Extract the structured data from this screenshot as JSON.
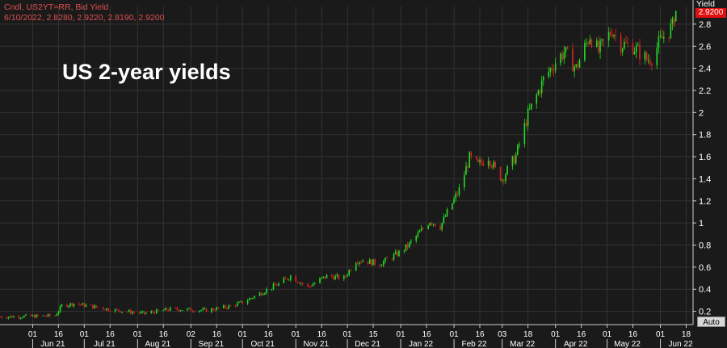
{
  "header": {
    "line1": "Cndl, US2YT=RR, Bid Yield",
    "line2": "6/10/2022, 2.8280, 2.9220, 2.8190, 2.9200"
  },
  "y_axis_unit": "Yield",
  "last_value_badge": "2.9200",
  "auto_button": "Auto",
  "colors": {
    "background": "#1a1a1a",
    "up": "#22dd22",
    "down": "#dd2222",
    "grid": "#333333",
    "axis_text": "#ffffff",
    "badge": "#e01010"
  },
  "chart_data": {
    "type": "candlestick",
    "title": "US 2-year yields",
    "series_name": "US2YT=RR Bid Yield",
    "ylim": [
      0.08,
      2.96
    ],
    "y_ticks": [
      "0.2",
      "0.4",
      "0.6",
      "0.8",
      "1",
      "1.2",
      "1.4",
      "1.6",
      "1.8",
      "2",
      "2.2",
      "2.4",
      "2.6",
      "2.8"
    ],
    "x_day_ticks": [
      "01",
      "16",
      "01",
      "16",
      "01",
      "16",
      "02",
      "16",
      "01",
      "16",
      "01",
      "16",
      "01",
      "15",
      "01",
      "16",
      "01",
      "16",
      "03",
      "18",
      "01",
      "16",
      "01",
      "16",
      "01",
      "18",
      "02",
      "16",
      "01",
      "16"
    ],
    "x_month_labels": [
      "Jun 21",
      "Jul 21",
      "Aug 21",
      "Sep 21",
      "Oct 21",
      "Nov 21",
      "Dec 21",
      "Jan 22",
      "Feb 22",
      "Mar 22",
      "Apr 22",
      "May 22",
      "Jun 22"
    ],
    "x_range": [
      "2021-05-13",
      "2022-06-20"
    ],
    "anchors": [
      [
        "2021-05-13",
        0.15
      ],
      [
        "2021-06-14",
        0.16
      ],
      [
        "2021-06-18",
        0.25
      ],
      [
        "2021-06-25",
        0.27
      ],
      [
        "2021-07-19",
        0.21
      ],
      [
        "2021-08-05",
        0.18
      ],
      [
        "2021-08-20",
        0.22
      ],
      [
        "2021-09-10",
        0.21
      ],
      [
        "2021-09-22",
        0.24
      ],
      [
        "2021-10-01",
        0.28
      ],
      [
        "2021-10-22",
        0.45
      ],
      [
        "2021-10-29",
        0.52
      ],
      [
        "2021-11-08",
        0.42
      ],
      [
        "2021-11-19",
        0.52
      ],
      [
        "2021-11-29",
        0.5
      ],
      [
        "2021-12-06",
        0.66
      ],
      [
        "2021-12-10",
        0.66
      ],
      [
        "2021-12-20",
        0.63
      ],
      [
        "2021-12-31",
        0.73
      ],
      [
        "2022-01-05",
        0.79
      ],
      [
        "2022-01-18",
        1.02
      ],
      [
        "2022-01-24",
        0.97
      ],
      [
        "2022-01-31",
        1.18
      ],
      [
        "2022-02-04",
        1.3
      ],
      [
        "2022-02-10",
        1.59
      ],
      [
        "2022-02-15",
        1.52
      ],
      [
        "2022-02-21",
        1.6
      ],
      [
        "2022-02-25",
        1.48
      ],
      [
        "2022-03-01",
        1.4
      ],
      [
        "2022-03-09",
        1.61
      ],
      [
        "2022-03-16",
        1.98
      ],
      [
        "2022-03-21",
        2.15
      ],
      [
        "2022-03-25",
        2.3
      ],
      [
        "2022-04-01",
        2.46
      ],
      [
        "2022-04-06",
        2.55
      ],
      [
        "2022-04-13",
        2.4
      ],
      [
        "2022-04-21",
        2.7
      ],
      [
        "2022-04-26",
        2.55
      ],
      [
        "2022-05-04",
        2.75
      ],
      [
        "2022-05-09",
        2.62
      ],
      [
        "2022-05-16",
        2.6
      ],
      [
        "2022-05-24",
        2.48
      ],
      [
        "2022-05-27",
        2.5
      ],
      [
        "2022-06-01",
        2.65
      ],
      [
        "2022-06-08",
        2.78
      ],
      [
        "2022-06-10",
        2.92
      ]
    ],
    "last_candle": {
      "date": "6/10/2022",
      "open": 2.828,
      "high": 2.922,
      "low": 2.819,
      "close": 2.92
    }
  }
}
